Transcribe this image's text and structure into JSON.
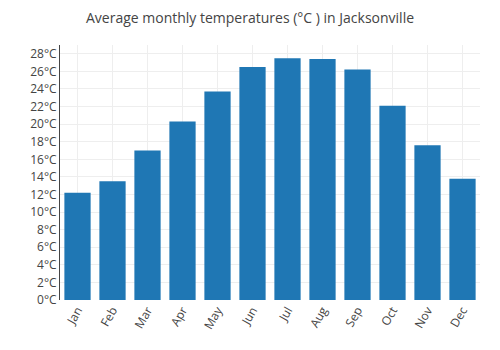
{
  "chart_data": {
    "type": "bar",
    "title": "Average monthly temperatures (°C ) in Jacksonville",
    "categories": [
      "Jan",
      "Feb",
      "Mar",
      "Apr",
      "May",
      "Jun",
      "Jul",
      "Aug",
      "Sep",
      "Oct",
      "Nov",
      "Dec"
    ],
    "values": [
      12.2,
      13.5,
      17.0,
      20.3,
      23.7,
      26.5,
      27.5,
      27.4,
      26.2,
      22.1,
      17.6,
      13.8
    ],
    "ylim": [
      0,
      29
    ],
    "yticks": [
      {
        "value": 0,
        "label": "0°C"
      },
      {
        "value": 2,
        "label": "2°C"
      },
      {
        "value": 4,
        "label": "4°C"
      },
      {
        "value": 6,
        "label": "6°C"
      },
      {
        "value": 8,
        "label": "8°C"
      },
      {
        "value": 10,
        "label": "10°C"
      },
      {
        "value": 12,
        "label": "12°C"
      },
      {
        "value": 14,
        "label": "14°C"
      },
      {
        "value": 16,
        "label": "16°C"
      },
      {
        "value": 18,
        "label": "18°C"
      },
      {
        "value": 20,
        "label": "20°C"
      },
      {
        "value": 22,
        "label": "22°C"
      },
      {
        "value": 24,
        "label": "24°C"
      },
      {
        "value": 26,
        "label": "26°C"
      },
      {
        "value": 28,
        "label": "28°C"
      }
    ],
    "grid": true
  }
}
